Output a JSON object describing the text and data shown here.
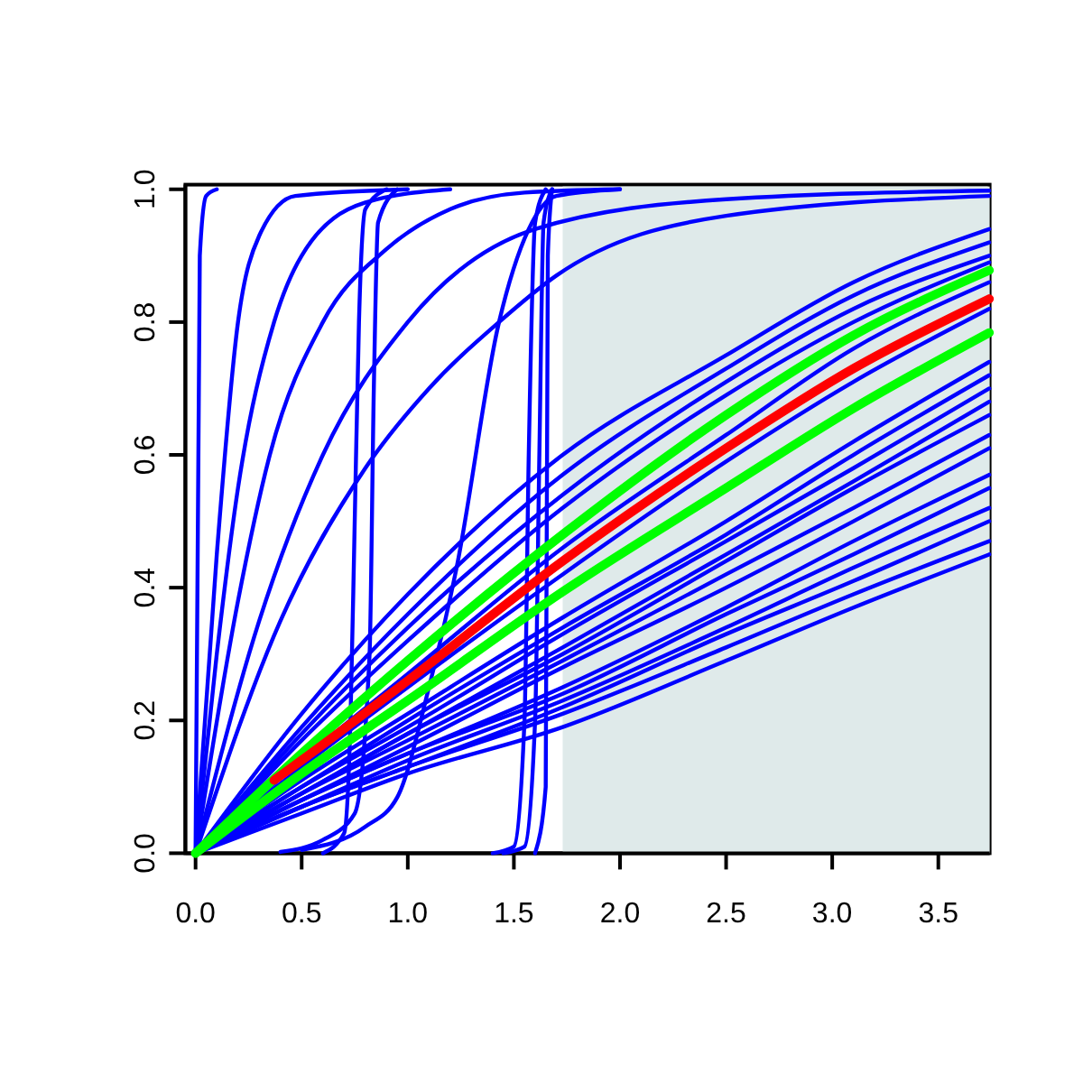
{
  "chart_data": {
    "type": "line",
    "xlim": [
      -0.048,
      3.742
    ],
    "ylim": [
      0,
      1.007
    ],
    "xticks": [
      {
        "value": 0,
        "label": "0.0"
      },
      {
        "value": 0.5,
        "label": "0.5"
      },
      {
        "value": 1,
        "label": "1.0"
      },
      {
        "value": 1.5,
        "label": "1.5"
      },
      {
        "value": 2,
        "label": "2.0"
      },
      {
        "value": 2.5,
        "label": "2.5"
      },
      {
        "value": 3,
        "label": "3.0"
      },
      {
        "value": 3.5,
        "label": "3.5"
      }
    ],
    "yticks": [
      {
        "value": 0,
        "label": "0.0"
      },
      {
        "value": 0.2,
        "label": "0.2"
      },
      {
        "value": 0.4,
        "label": "0.4"
      },
      {
        "value": 0.6,
        "label": "0.6"
      },
      {
        "value": 0.8,
        "label": "0.8"
      },
      {
        "value": 1,
        "label": "1.0"
      }
    ],
    "grid": false,
    "marker": "none",
    "line_style": "solid",
    "bands": [
      {
        "axis": "x",
        "from": 1.73,
        "to": 3.742,
        "color": "#dfeaea"
      }
    ],
    "series": [
      {
        "color": "#0000ff",
        "x": [
          0,
          0.02,
          0.05,
          0.1
        ],
        "values": [
          0,
          0.9,
          0.99,
          1
        ]
      },
      {
        "color": "#0000ff",
        "x": [
          0,
          0.1,
          0.2,
          0.3,
          0.47,
          1
        ],
        "values": [
          0,
          0.45,
          0.8,
          0.93,
          0.99,
          1
        ]
      },
      {
        "color": "#0000ff",
        "x": [
          0,
          0.1,
          0.2,
          0.37,
          0.5,
          0.8,
          1.2
        ],
        "values": [
          0,
          0.3,
          0.55,
          0.8,
          0.9,
          0.98,
          1
        ]
      },
      {
        "color": "#0000ff",
        "x": [
          0,
          0.2,
          0.35,
          0.6,
          0.9,
          1.2,
          1.55,
          2
        ],
        "values": [
          0,
          0.38,
          0.6,
          0.8,
          0.91,
          0.97,
          0.995,
          1
        ]
      },
      {
        "color": "#0000ff",
        "x": [
          0,
          0.3,
          0.6,
          1,
          1.6,
          2.5,
          3.74
        ],
        "values": [
          0,
          0.35,
          0.6,
          0.8,
          0.94,
          0.985,
          0.998
        ]
      },
      {
        "color": "#0000ff",
        "x": [
          0,
          0.4,
          0.8,
          1.1,
          1.43,
          1.7,
          2.5,
          3.74
        ],
        "values": [
          0,
          0.35,
          0.58,
          0.7,
          0.8,
          0.87,
          0.96,
          0.99
        ]
      },
      {
        "color": "#0000ff",
        "x": [
          0.6,
          0.7,
          0.73,
          0.75,
          0.77,
          0.8,
          0.9
        ],
        "values": [
          0,
          0.03,
          0.2,
          0.5,
          0.8,
          0.97,
          1
        ]
      },
      {
        "color": "#0000ff",
        "x": [
          0.4,
          0.6,
          0.75,
          0.82,
          0.84,
          0.86,
          0.95
        ],
        "values": [
          0.002,
          0.02,
          0.06,
          0.3,
          0.7,
          0.95,
          1
        ]
      },
      {
        "color": "#0000ff",
        "x": [
          0.5,
          0.8,
          0.95,
          1.1,
          1.23,
          1.43,
          1.57,
          1.7,
          2
        ],
        "values": [
          0.005,
          0.04,
          0.084,
          0.25,
          0.43,
          0.8,
          0.94,
          0.99,
          1
        ]
      },
      {
        "color": "#0000ff",
        "x": [
          1.4,
          1.5,
          1.55,
          1.57,
          1.6,
          1.65
        ],
        "values": [
          0,
          0.01,
          0.2,
          0.6,
          0.95,
          1
        ]
      },
      {
        "color": "#0000ff",
        "x": [
          1.45,
          1.55,
          1.6,
          1.62,
          1.64,
          1.68
        ],
        "values": [
          0,
          0.01,
          0.2,
          0.6,
          0.95,
          1
        ]
      },
      {
        "color": "#0000ff",
        "x": [
          1.6,
          1.65,
          1.66,
          1.68
        ],
        "values": [
          0,
          0.1,
          0.9,
          1
        ]
      },
      {
        "color": "#0000ff",
        "x": [
          0,
          0.5,
          1,
          1.73,
          2.5,
          3.1,
          3.74
        ],
        "values": [
          0,
          0.21,
          0.39,
          0.6,
          0.75,
          0.86,
          0.94
        ]
      },
      {
        "color": "#0000ff",
        "x": [
          0,
          0.5,
          1,
          1.73,
          2.5,
          3.1,
          3.74
        ],
        "values": [
          0,
          0.19,
          0.36,
          0.57,
          0.73,
          0.84,
          0.92
        ]
      },
      {
        "color": "#0000ff",
        "x": [
          0,
          0.5,
          1,
          1.73,
          2.5,
          3.1,
          3.74
        ],
        "values": [
          0,
          0.18,
          0.34,
          0.54,
          0.71,
          0.82,
          0.9
        ]
      },
      {
        "color": "#0000ff",
        "x": [
          0,
          0.5,
          1,
          1.73,
          2.5,
          3.1,
          3.74
        ],
        "values": [
          0,
          0.17,
          0.32,
          0.52,
          0.69,
          0.8,
          0.89
        ]
      },
      {
        "color": "#0000ff",
        "x": [
          0,
          0.5,
          1,
          1.73,
          2.5,
          3.1,
          3.74
        ],
        "values": [
          0,
          0.14,
          0.27,
          0.46,
          0.63,
          0.76,
          0.86
        ]
      },
      {
        "color": "#0000ff",
        "x": [
          0,
          0.5,
          1,
          1.73,
          2.5,
          3.1,
          3.74
        ],
        "values": [
          0,
          0.13,
          0.25,
          0.42,
          0.59,
          0.71,
          0.82
        ]
      },
      {
        "color": "#0000ff",
        "x": [
          0,
          0.5,
          1,
          1.73,
          2.5,
          3.1,
          3.74
        ],
        "values": [
          0,
          0.11,
          0.21,
          0.355,
          0.5,
          0.62,
          0.74
        ]
      },
      {
        "color": "#0000ff",
        "x": [
          0,
          0.5,
          1,
          1.73,
          2.5,
          3.1,
          3.74
        ],
        "values": [
          0,
          0.1,
          0.2,
          0.34,
          0.48,
          0.6,
          0.72
        ]
      },
      {
        "color": "#0000ff",
        "x": [
          0,
          0.5,
          1,
          1.73,
          2.5,
          3.1,
          3.74
        ],
        "values": [
          0,
          0.1,
          0.19,
          0.33,
          0.47,
          0.58,
          0.7
        ]
      },
      {
        "color": "#0000ff",
        "x": [
          0,
          0.5,
          1,
          1.73,
          2.5,
          3.1,
          3.74
        ],
        "values": [
          0,
          0.09,
          0.18,
          0.31,
          0.45,
          0.56,
          0.68
        ]
      },
      {
        "color": "#0000ff",
        "x": [
          0,
          0.5,
          1,
          1.73,
          2.5,
          3.1,
          3.74
        ],
        "values": [
          0,
          0.09,
          0.18,
          0.3,
          0.44,
          0.55,
          0.66
        ]
      },
      {
        "color": "#0000ff",
        "x": [
          0,
          0.5,
          1,
          1.73,
          2.5,
          3.1,
          3.74
        ],
        "values": [
          0,
          0.09,
          0.17,
          0.29,
          0.42,
          0.52,
          0.63
        ]
      },
      {
        "color": "#0000ff",
        "x": [
          0,
          0.5,
          1,
          1.73,
          2.5,
          3.1,
          3.74
        ],
        "values": [
          0,
          0.08,
          0.16,
          0.28,
          0.4,
          0.5,
          0.61
        ]
      },
      {
        "color": "#0000ff",
        "x": [
          0,
          0.5,
          1,
          1.73,
          2.5,
          3.1,
          3.74
        ],
        "values": [
          0,
          0.08,
          0.15,
          0.25,
          0.37,
          0.47,
          0.57
        ]
      },
      {
        "color": "#0000ff",
        "x": [
          0,
          0.5,
          1,
          1.73,
          2.5,
          3.1,
          3.74
        ],
        "values": [
          0,
          0.08,
          0.15,
          0.24,
          0.36,
          0.45,
          0.55
        ]
      },
      {
        "color": "#0000ff",
        "x": [
          0,
          0.5,
          1,
          1.73,
          2.5,
          3.1,
          3.74
        ],
        "values": [
          0,
          0.07,
          0.14,
          0.23,
          0.34,
          0.43,
          0.52
        ]
      },
      {
        "color": "#0000ff",
        "x": [
          0,
          0.5,
          1,
          1.73,
          2.5,
          3.1,
          3.74
        ],
        "values": [
          0,
          0.07,
          0.13,
          0.22,
          0.33,
          0.41,
          0.5
        ]
      },
      {
        "color": "#0000ff",
        "x": [
          0,
          0.5,
          1,
          1.73,
          2.5,
          3.1,
          3.74
        ],
        "values": [
          0,
          0.07,
          0.13,
          0.21,
          0.31,
          0.39,
          0.47
        ]
      },
      {
        "color": "#0000ff",
        "x": [
          0,
          0.5,
          1,
          1.73,
          2.5,
          3.1,
          3.74
        ],
        "values": [
          0,
          0.06,
          0.12,
          0.19,
          0.29,
          0.37,
          0.45
        ]
      },
      {
        "color": "#00ff00",
        "x": [
          0,
          0.5,
          1,
          1.73,
          2.5,
          3.1,
          3.74
        ],
        "values": [
          0,
          0.15,
          0.29,
          0.48,
          0.66,
          0.78,
          0.878
        ]
      },
      {
        "color": "#00ff00",
        "x": [
          0,
          0.5,
          1,
          1.73,
          2.5,
          3.1,
          3.74
        ],
        "values": [
          0,
          0.12,
          0.23,
          0.394,
          0.55,
          0.67,
          0.784
        ]
      },
      {
        "color": "#ff0000",
        "x": [
          0.37,
          0.5,
          1,
          1.73,
          2.5,
          3.1,
          3.74
        ],
        "values": [
          0.11,
          0.14,
          0.26,
          0.44,
          0.61,
          0.73,
          0.835
        ]
      }
    ]
  }
}
